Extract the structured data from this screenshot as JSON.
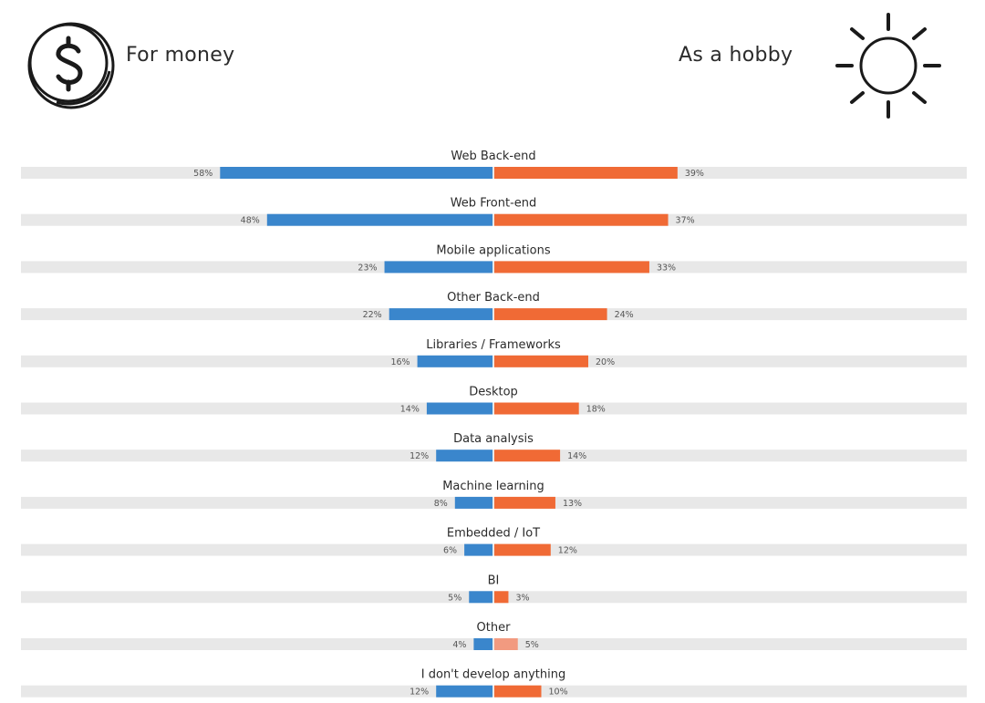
{
  "legend": {
    "left_label": "For money",
    "right_label": "As a hobby",
    "left_icon": "coin-dollar-icon",
    "right_icon": "sun-icon"
  },
  "colors": {
    "money": "#3a86cc",
    "hobby": "#f06a35",
    "track": "#e8e8e8",
    "other_money": "#3a86cc",
    "other_hobby": "#f29a80"
  },
  "chart_data": {
    "type": "bar",
    "orientation": "horizontal-diverging",
    "title": "",
    "xlabel": "",
    "ylabel": "",
    "xlim": [
      0,
      100
    ],
    "categories": [
      "Web Back-end",
      "Web Front-end",
      "Mobile applications",
      "Other Back-end",
      "Libraries / Frameworks",
      "Desktop",
      "Data analysis",
      "Machine learning",
      "Embedded / IoT",
      "BI",
      "Other",
      "I don't develop anything"
    ],
    "series": [
      {
        "name": "For money",
        "side": "left",
        "values": [
          58,
          48,
          23,
          22,
          16,
          14,
          12,
          8,
          6,
          5,
          4,
          12
        ],
        "labels": [
          "58%",
          "48%",
          "23%",
          "22%",
          "16%",
          "14%",
          "12%",
          "8%",
          "6%",
          "5%",
          "4%",
          "12%"
        ]
      },
      {
        "name": "As a hobby",
        "side": "right",
        "values": [
          39,
          37,
          33,
          24,
          20,
          18,
          14,
          13,
          12,
          3,
          5,
          10
        ],
        "labels": [
          "39%",
          "37%",
          "33%",
          "24%",
          "20%",
          "18%",
          "14%",
          "13%",
          "12%",
          "3%",
          "5%",
          "10%"
        ]
      }
    ]
  }
}
